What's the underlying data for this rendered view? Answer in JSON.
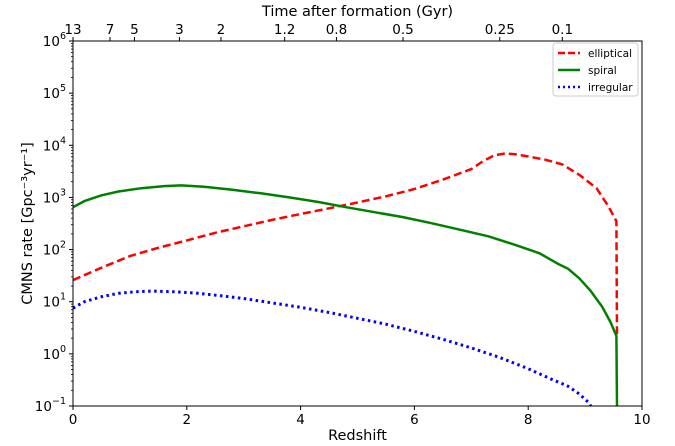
{
  "chart_data": {
    "type": "line",
    "xlabel": "Redshift",
    "ylabel": "CMNS rate [Gpc⁻³yr⁻¹]",
    "top_xlabel": "Time after formation (Gyr)",
    "xlim": [
      0,
      10
    ],
    "ylim": [
      0.1,
      1000000
    ],
    "yscale": "log",
    "x_ticks": [
      0,
      2,
      4,
      6,
      8,
      10
    ],
    "y_ticks": [
      {
        "value": 0.1,
        "base": "10",
        "exp": "−1"
      },
      {
        "value": 1,
        "base": "10",
        "exp": "0"
      },
      {
        "value": 10,
        "base": "10",
        "exp": "1"
      },
      {
        "value": 100,
        "base": "10",
        "exp": "2"
      },
      {
        "value": 1000,
        "base": "10",
        "exp": "3"
      },
      {
        "value": 10000,
        "base": "10",
        "exp": "4"
      },
      {
        "value": 100000,
        "base": "10",
        "exp": "5"
      },
      {
        "value": 1000000,
        "base": "10",
        "exp": "6"
      }
    ],
    "top_ticks": [
      {
        "label": "13",
        "z": 0.0
      },
      {
        "label": "7",
        "z": 0.65
      },
      {
        "label": "5",
        "z": 1.08
      },
      {
        "label": "3",
        "z": 1.87
      },
      {
        "label": "2",
        "z": 2.6
      },
      {
        "label": "1.2",
        "z": 3.72
      },
      {
        "label": "0.8",
        "z": 4.63
      },
      {
        "label": "0.5",
        "z": 5.8
      },
      {
        "label": "0.25",
        "z": 7.5
      },
      {
        "label": "0.1",
        "z": 8.6
      }
    ],
    "legend_position": "top-right",
    "grid": false,
    "series": [
      {
        "name": "elliptical",
        "color": "#ff0000",
        "style": "dashed",
        "x": [
          0.0,
          0.5,
          1.0,
          1.5,
          2.0,
          2.5,
          3.0,
          3.5,
          4.0,
          4.5,
          5.0,
          5.5,
          6.0,
          6.5,
          7.0,
          7.2,
          7.4,
          7.6,
          7.8,
          8.0,
          8.3,
          8.6,
          8.9,
          9.2,
          9.4,
          9.55,
          9.56
        ],
        "values": [
          26,
          45,
          75,
          108,
          150,
          210,
          280,
          370,
          480,
          620,
          800,
          1050,
          1450,
          2200,
          3500,
          4900,
          6400,
          7000,
          6700,
          6100,
          5300,
          4300,
          2700,
          1500,
          700,
          350,
          2
        ]
      },
      {
        "name": "spiral",
        "color": "#008000",
        "style": "solid",
        "x": [
          0.0,
          0.2,
          0.5,
          0.8,
          1.2,
          1.6,
          1.9,
          2.3,
          2.8,
          3.3,
          3.8,
          4.3,
          4.8,
          5.3,
          5.8,
          6.3,
          6.8,
          7.3,
          7.8,
          8.2,
          8.5,
          8.7,
          8.9,
          9.1,
          9.3,
          9.45,
          9.55,
          9.56
        ],
        "values": [
          650,
          850,
          1100,
          1300,
          1500,
          1650,
          1700,
          1600,
          1400,
          1200,
          1000,
          820,
          650,
          520,
          420,
          320,
          240,
          180,
          120,
          85,
          55,
          43,
          28,
          16,
          8,
          4,
          2.2,
          0.1
        ]
      },
      {
        "name": "irregular",
        "color": "#0000ff",
        "style": "dotted",
        "x": [
          0.0,
          0.2,
          0.5,
          0.8,
          1.1,
          1.4,
          1.8,
          2.2,
          2.6,
          3.0,
          3.5,
          4.0,
          4.5,
          5.0,
          5.5,
          6.0,
          6.5,
          7.0,
          7.5,
          8.0,
          8.4,
          8.7,
          8.9,
          9.05,
          9.1
        ],
        "values": [
          7.5,
          10,
          12.5,
          14.5,
          15.5,
          16,
          15.5,
          14.5,
          13,
          11.5,
          9.5,
          7.8,
          6.2,
          4.8,
          3.7,
          2.7,
          1.9,
          1.3,
          0.85,
          0.52,
          0.33,
          0.24,
          0.17,
          0.12,
          0.1
        ]
      }
    ]
  }
}
